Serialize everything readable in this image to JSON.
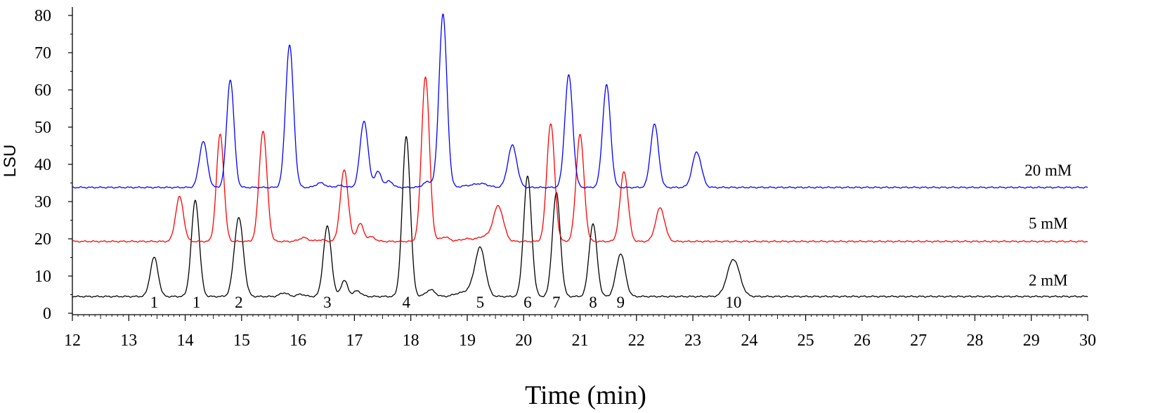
{
  "chart_data": {
    "type": "line",
    "xlabel": "Time (min)",
    "ylabel": "LSU",
    "xlim": [
      12,
      30
    ],
    "ylim": [
      0,
      82
    ],
    "x_ticks": [
      "12",
      "13",
      "14",
      "15",
      "16",
      "17",
      "18",
      "19",
      "20",
      "21",
      "22",
      "23",
      "24",
      "25",
      "26",
      "27",
      "28",
      "29",
      "30"
    ],
    "y_ticks": [
      "0",
      "10",
      "20",
      "30",
      "40",
      "50",
      "60",
      "70",
      "80"
    ],
    "grid": false,
    "series": [
      {
        "name": "2 mM",
        "color": "#000000",
        "baseline": 4.5,
        "peaks": [
          [
            13.45,
            10.5,
            0.07
          ],
          [
            14.18,
            25.8,
            0.07
          ],
          [
            14.95,
            21.2,
            0.08
          ],
          [
            15.75,
            1.0,
            0.07
          ],
          [
            16.05,
            0.6,
            0.07
          ],
          [
            16.52,
            18.8,
            0.07
          ],
          [
            16.82,
            4.3,
            0.06
          ],
          [
            17.05,
            1.5,
            0.07
          ],
          [
            17.92,
            43.0,
            0.07
          ],
          [
            18.35,
            1.8,
            0.08
          ],
          [
            18.85,
            0.8,
            0.1
          ],
          [
            19.05,
            1.5,
            0.09
          ],
          [
            19.23,
            13.0,
            0.09
          ],
          [
            20.07,
            32.3,
            0.07
          ],
          [
            20.58,
            27.8,
            0.07
          ],
          [
            21.23,
            19.5,
            0.07
          ],
          [
            21.72,
            11.5,
            0.08
          ],
          [
            23.72,
            10.0,
            0.11
          ]
        ]
      },
      {
        "name": "5 mM",
        "color": "#ff0000",
        "baseline": 19.3,
        "peaks": [
          [
            13.9,
            12.0,
            0.07
          ],
          [
            14.62,
            28.8,
            0.065
          ],
          [
            15.38,
            29.7,
            0.07
          ],
          [
            16.1,
            1.0,
            0.08
          ],
          [
            16.4,
            0.4,
            0.08
          ],
          [
            16.82,
            19.2,
            0.07
          ],
          [
            17.1,
            4.8,
            0.06
          ],
          [
            17.3,
            1.2,
            0.07
          ],
          [
            18.26,
            44.3,
            0.07
          ],
          [
            18.6,
            1.2,
            0.08
          ],
          [
            19.0,
            0.7,
            0.12
          ],
          [
            19.3,
            1.3,
            0.1
          ],
          [
            19.55,
            9.5,
            0.09
          ],
          [
            20.48,
            31.7,
            0.07
          ],
          [
            21.0,
            28.7,
            0.07
          ],
          [
            21.78,
            18.8,
            0.07
          ],
          [
            22.42,
            9.0,
            0.08
          ]
        ]
      },
      {
        "name": "20 mM",
        "color": "#0000ff",
        "baseline": 33.8,
        "peaks": [
          [
            14.32,
            12.4,
            0.07
          ],
          [
            14.8,
            29.0,
            0.065
          ],
          [
            15.85,
            38.3,
            0.07
          ],
          [
            16.4,
            1.2,
            0.08
          ],
          [
            16.75,
            0.5,
            0.08
          ],
          [
            17.17,
            17.9,
            0.07
          ],
          [
            17.42,
            4.2,
            0.06
          ],
          [
            17.62,
            1.7,
            0.06
          ],
          [
            18.3,
            1.5,
            0.08
          ],
          [
            18.57,
            46.5,
            0.07
          ],
          [
            19.0,
            0.4,
            0.12
          ],
          [
            19.25,
            1.0,
            0.12
          ],
          [
            19.8,
            11.3,
            0.08
          ],
          [
            20.8,
            30.2,
            0.07
          ],
          [
            21.47,
            27.5,
            0.07
          ],
          [
            22.32,
            17.0,
            0.07
          ],
          [
            23.07,
            9.5,
            0.08
          ]
        ]
      }
    ],
    "series_labels": [
      {
        "text": "20 mM",
        "x": 29.3,
        "y": 37.0
      },
      {
        "text": "5 mM",
        "x": 29.3,
        "y": 22.7
      },
      {
        "text": "2 mM",
        "x": 29.3,
        "y": 7.5
      }
    ],
    "peak_labels": [
      {
        "text": "1",
        "x": 13.45
      },
      {
        "text": "1",
        "x": 14.2
      },
      {
        "text": "2",
        "x": 14.95
      },
      {
        "text": "3",
        "x": 16.52
      },
      {
        "text": "4",
        "x": 17.92
      },
      {
        "text": "5",
        "x": 19.23
      },
      {
        "text": "6",
        "x": 20.07
      },
      {
        "text": "7",
        "x": 20.58
      },
      {
        "text": "8",
        "x": 21.23
      },
      {
        "text": "9",
        "x": 21.72
      },
      {
        "text": "10",
        "x": 23.72
      }
    ],
    "peak_label_y": 1.5
  }
}
